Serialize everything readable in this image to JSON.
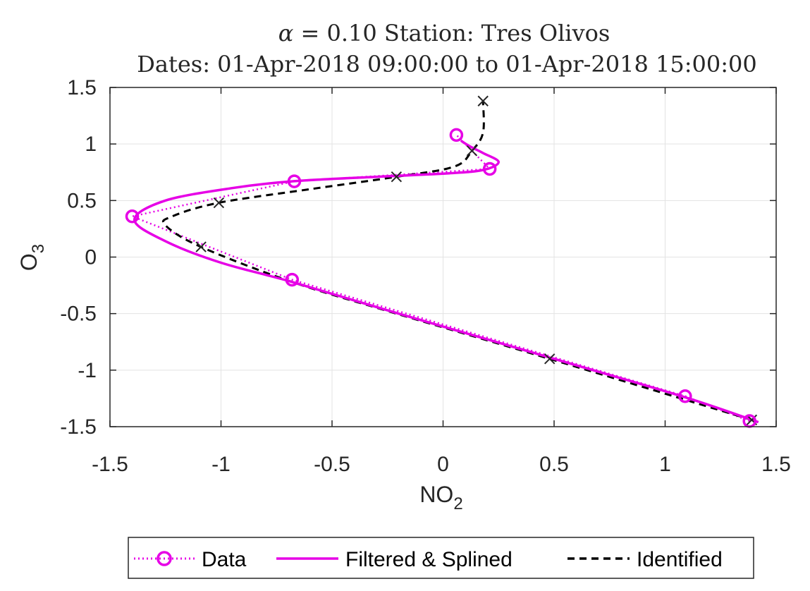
{
  "chart_data": {
    "type": "line",
    "title": "α = 0.10 Station: Tres Olivos",
    "title_alpha": "α",
    "title_rest": " = 0.10 Station: Tres Olivos",
    "subtitle": "Dates: 01-Apr-2018 09:00:00 to 01-Apr-2018 15:00:00",
    "xlabel": "NO",
    "xlabel_sub": "2",
    "ylabel": "O",
    "ylabel_sub": "3",
    "xlim": [
      -1.5,
      1.5
    ],
    "ylim": [
      -1.5,
      1.5
    ],
    "xticks": [
      -1.5,
      -1,
      -0.5,
      0,
      0.5,
      1,
      1.5
    ],
    "yticks": [
      -1.5,
      -1,
      -0.5,
      0,
      0.5,
      1,
      1.5
    ],
    "xtick_labels": [
      "-1.5",
      "-1",
      "-0.5",
      "0",
      "0.5",
      "1",
      "1.5"
    ],
    "ytick_labels": [
      "-1.5",
      "-1",
      "-0.5",
      "0",
      "0.5",
      "1",
      "1.5"
    ],
    "grid": true,
    "legend_position": "bottom",
    "series": [
      {
        "name": "Data",
        "style": "dotted-circle",
        "color": "#e600e6",
        "x": [
          1.38,
          1.09,
          -0.68,
          -1.4,
          -0.67,
          0.21,
          0.06
        ],
        "y": [
          -1.45,
          -1.23,
          -0.2,
          0.36,
          0.67,
          0.78,
          1.08
        ]
      },
      {
        "name": "Filtered & Splined",
        "style": "solid",
        "color": "#e600e6",
        "x": [
          1.42,
          1.09,
          0.5,
          -0.2,
          -0.68,
          -1.0,
          -1.25,
          -1.39,
          -1.25,
          -0.95,
          -0.68,
          -0.3,
          0.02,
          0.18,
          0.25,
          0.18,
          0.12,
          0.08
        ],
        "y": [
          -1.46,
          -1.24,
          -0.9,
          -0.5,
          -0.22,
          -0.05,
          0.14,
          0.33,
          0.5,
          0.61,
          0.67,
          0.71,
          0.74,
          0.77,
          0.84,
          0.92,
          0.98,
          1.03
        ]
      },
      {
        "name": "Identified",
        "style": "dashed-x",
        "color": "#000000",
        "x": [
          1.39,
          0.48,
          -0.21,
          -0.68,
          -1.09,
          -1.25,
          -1.22,
          -1.01,
          -0.6,
          -0.21,
          0.05,
          0.13,
          0.18,
          0.18
        ],
        "y": [
          -1.44,
          -0.9,
          -0.5,
          -0.22,
          0.09,
          0.28,
          0.36,
          0.48,
          0.6,
          0.71,
          0.8,
          0.94,
          1.1,
          1.38
        ],
        "marker_x": [
          1.39,
          0.48,
          -1.09,
          -1.01,
          -0.21,
          0.13,
          0.18
        ],
        "marker_y": [
          -1.44,
          -0.9,
          0.09,
          0.48,
          0.71,
          0.94,
          1.38
        ]
      }
    ]
  }
}
